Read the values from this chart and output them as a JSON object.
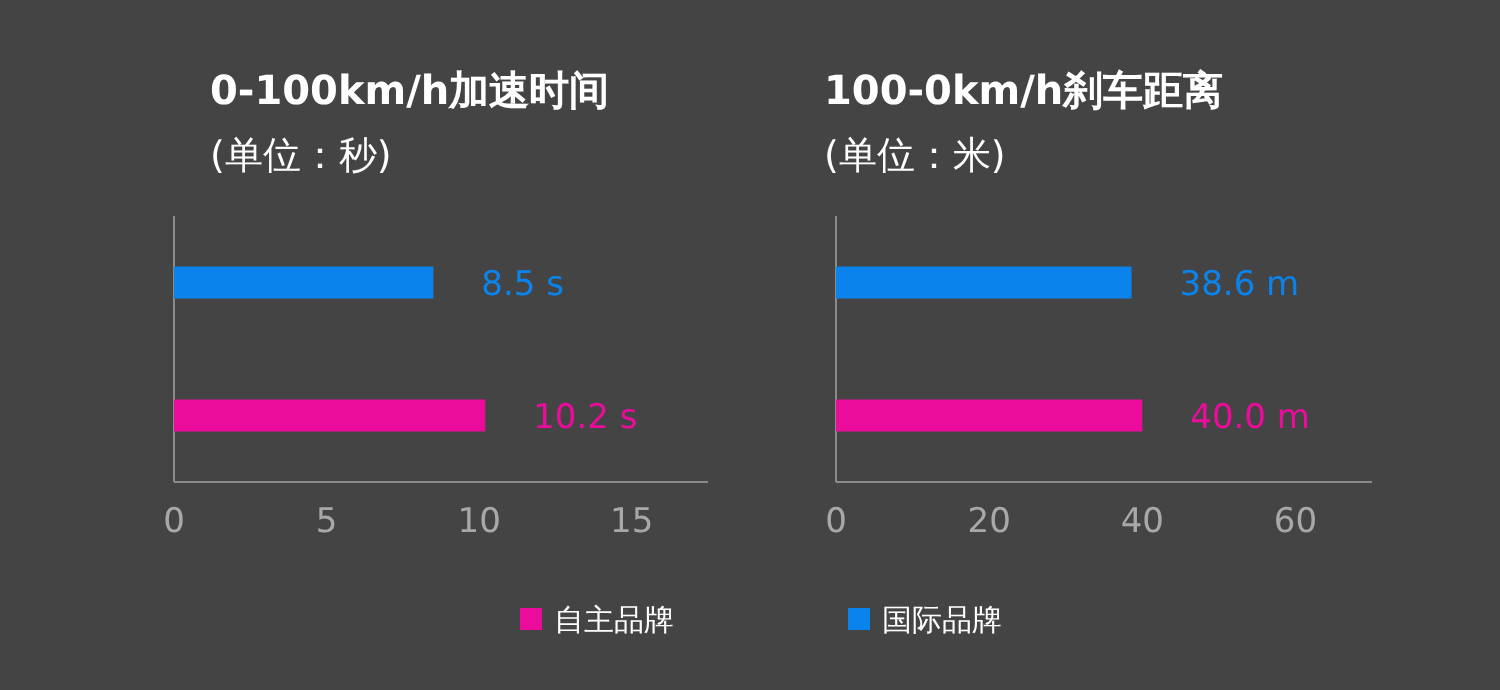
{
  "chart_data": [
    {
      "type": "bar",
      "orientation": "horizontal",
      "title": "0-100km/h加速时间",
      "subtitle": "(单位：秒)",
      "categories": [
        null,
        null
      ],
      "xlim": [
        0,
        17.5
      ],
      "xticks": [
        0,
        5,
        10,
        15
      ],
      "legend": "bottom",
      "series": [
        {
          "name": "自主品牌",
          "color": "#ec0c9c",
          "values": [
            null,
            10.2
          ],
          "value_labels": [
            null,
            "10.2 s"
          ]
        },
        {
          "name": "国际品牌",
          "color": "#0a84ec",
          "values": [
            8.5,
            null
          ],
          "value_labels": [
            "8.5 s",
            null
          ]
        }
      ]
    },
    {
      "type": "bar",
      "orientation": "horizontal",
      "title": "100-0km/h刹车距离",
      "subtitle": "(单位：米)",
      "categories": [
        null,
        null
      ],
      "xlim": [
        0,
        70
      ],
      "xticks": [
        0,
        20,
        40,
        60
      ],
      "series": [
        {
          "color": "#ec0c9c",
          "values": [
            null,
            40.0
          ],
          "value_labels": [
            null,
            "40.0 m"
          ]
        },
        {
          "color": "#0a84ec",
          "values": [
            38.6,
            null
          ],
          "value_labels": [
            "38.6 m",
            null
          ]
        }
      ]
    }
  ]
}
